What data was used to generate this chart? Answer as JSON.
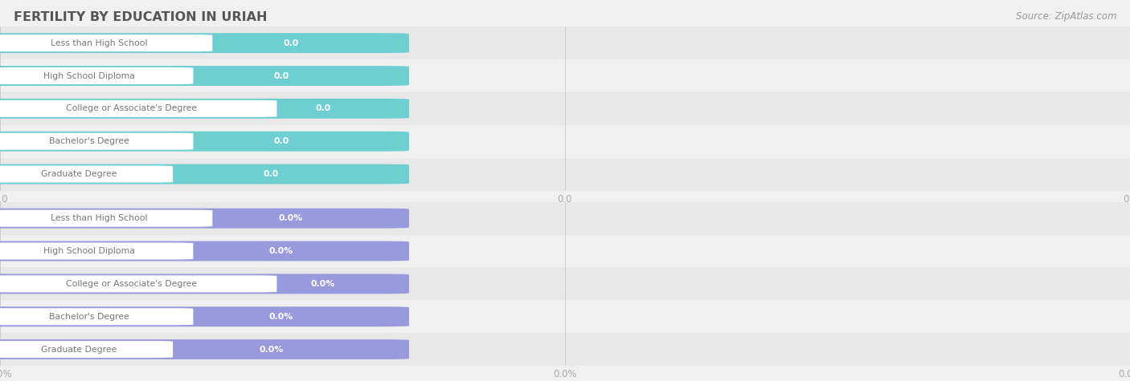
{
  "title": "FERTILITY BY EDUCATION IN URIAH",
  "source": "Source: ZipAtlas.com",
  "categories": [
    "Less than High School",
    "High School Diploma",
    "College or Associate's Degree",
    "Bachelor's Degree",
    "Graduate Degree"
  ],
  "values_top": [
    0.0,
    0.0,
    0.0,
    0.0,
    0.0
  ],
  "values_bottom": [
    0.0,
    0.0,
    0.0,
    0.0,
    0.0
  ],
  "bar_color_top": "#6dcfcf",
  "bar_color_bottom": "#9999dd",
  "bg_color": "#f0f0f0",
  "row_bg_colors": [
    "#e8e8e8",
    "#f0f0f0"
  ],
  "axis_label_color": "#aaaaaa",
  "title_color": "#555555",
  "source_color": "#999999",
  "label_text_color": "#777777",
  "white_pill_color": "#ffffff",
  "value_text_color": "#ffffff",
  "figsize": [
    14.06,
    4.75
  ],
  "dpi": 100,
  "n_xticks": 3,
  "xtick_positions": [
    0.0,
    0.5,
    1.0
  ]
}
